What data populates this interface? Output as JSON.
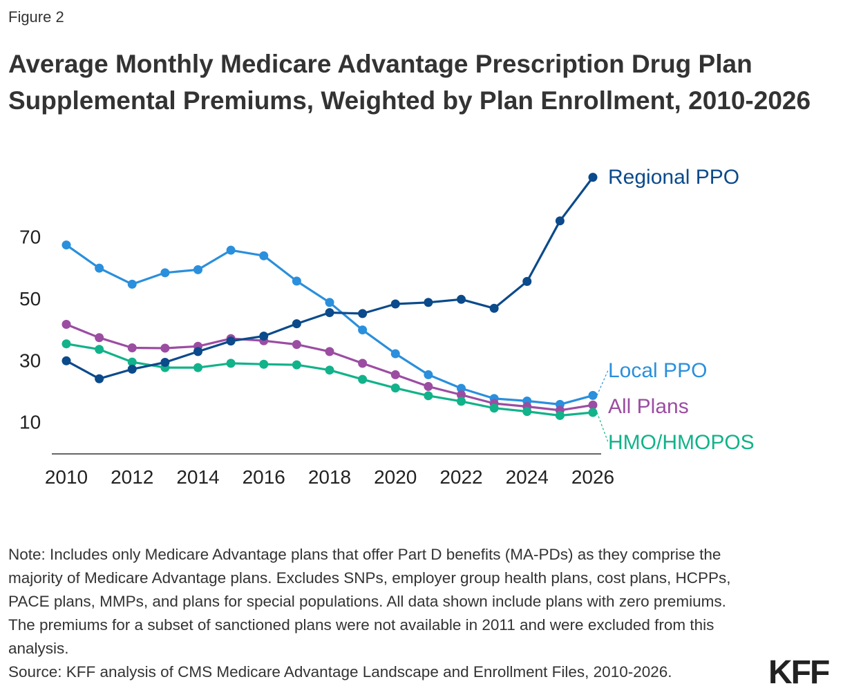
{
  "figure_label": "Figure 2",
  "title": "Average Monthly Medicare Advantage Prescription Drug Plan Supplemental Premiums, Weighted by Plan Enrollment, 2010-2026",
  "note": "Note: Includes only Medicare Advantage plans that offer Part D benefits (MA-PDs) as they comprise the majority of Medicare Advantage plans. Excludes SNPs, employer group health plans, cost plans, HCPPs, PACE plans, MMPs, and plans for special populations. All data shown include plans with zero premiums. The premiums for a subset of sanctioned plans were not available in 2011 and were excluded from this analysis.",
  "source": "Source: KFF analysis of CMS Medicare Advantage Landscape and Enrollment Files, 2010-2026.",
  "logo_text": "KFF",
  "chart_data": {
    "type": "line",
    "title": "",
    "xlabel": "",
    "ylabel": "",
    "x": [
      2010,
      2011,
      2012,
      2013,
      2014,
      2015,
      2016,
      2017,
      2018,
      2019,
      2020,
      2021,
      2022,
      2023,
      2024,
      2025,
      2026
    ],
    "xticks": [
      2010,
      2012,
      2014,
      2016,
      2018,
      2020,
      2022,
      2024,
      2026
    ],
    "yticks": [
      10,
      30,
      50,
      70
    ],
    "ylim": [
      1,
      92
    ],
    "xlim": [
      2010,
      2026
    ],
    "grid": false,
    "legend": "direct labels at line ends",
    "series": [
      {
        "name": "Regional PPO",
        "color": "#0b4a8b",
        "values": [
          30.0,
          24.2,
          27.3,
          29.5,
          33.0,
          36.4,
          38.0,
          42.0,
          45.6,
          45.3,
          48.4,
          48.9,
          49.9,
          47.0,
          55.7,
          75.3,
          89.4
        ]
      },
      {
        "name": "Local PPO",
        "color": "#2a8fdc",
        "values": [
          67.5,
          60.0,
          54.8,
          58.5,
          59.5,
          65.8,
          64.0,
          55.8,
          48.9,
          40.0,
          32.3,
          25.5,
          21.1,
          17.8,
          17.0,
          15.9,
          18.8
        ]
      },
      {
        "name": "All Plans",
        "color": "#9b4da2",
        "values": [
          41.8,
          37.5,
          34.2,
          34.1,
          34.7,
          37.2,
          36.5,
          35.3,
          33.0,
          29.2,
          25.5,
          21.7,
          19.0,
          16.2,
          15.2,
          14.0,
          15.7
        ]
      },
      {
        "name": "HMO/HMOPOS",
        "color": "#12b28a",
        "values": [
          35.5,
          33.7,
          29.6,
          27.8,
          27.8,
          29.2,
          28.9,
          28.7,
          27.0,
          24.0,
          21.2,
          18.7,
          16.9,
          14.7,
          13.6,
          12.3,
          13.3
        ]
      }
    ]
  }
}
